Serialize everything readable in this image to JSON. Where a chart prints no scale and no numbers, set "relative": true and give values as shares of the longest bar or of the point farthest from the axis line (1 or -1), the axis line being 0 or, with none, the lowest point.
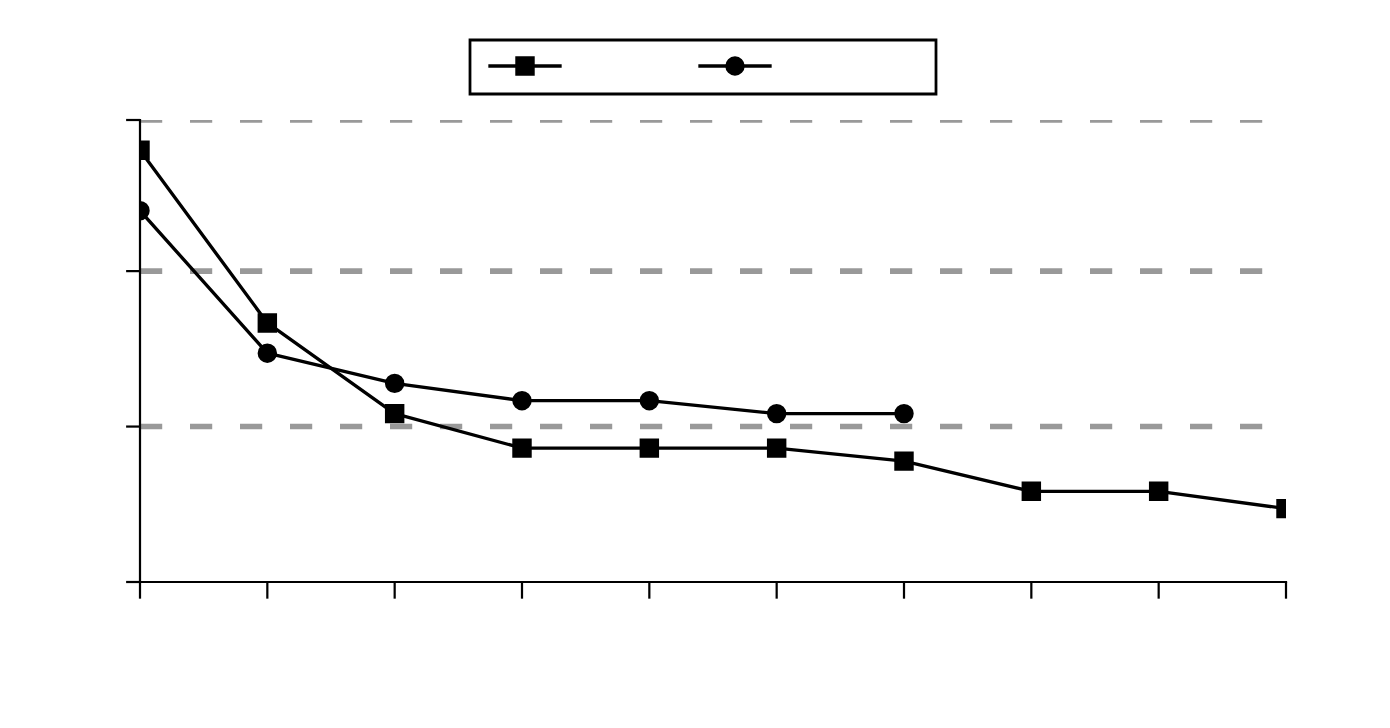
{
  "chart_data": {
    "type": "line",
    "relative": true,
    "categories": [
      null,
      null,
      null,
      null,
      null,
      null,
      null,
      null,
      null,
      null
    ],
    "series": [
      {
        "color": "#000000",
        "marker": "square",
        "values": [
          1,
          0.6,
          0.39,
          0.31,
          0.31,
          0.31,
          0.28,
          0.21,
          0.21,
          0.17
        ]
      },
      {
        "color": "#000000",
        "marker": "circle",
        "values": [
          0.86,
          0.53,
          0.46,
          0.42,
          0.42,
          0.39,
          0.39,
          null,
          null,
          null
        ]
      }
    ],
    "ref_lines": [
      {
        "axis": "y",
        "value": 1.07,
        "color": "#999999",
        "line_style": "dashed"
      },
      {
        "axis": "y",
        "value": 0.72,
        "color": "#999999",
        "line_style": "dashed"
      },
      {
        "axis": "y",
        "value": 0.36,
        "color": "#999999",
        "line_style": "dashed"
      }
    ],
    "line_style": "solid"
  }
}
